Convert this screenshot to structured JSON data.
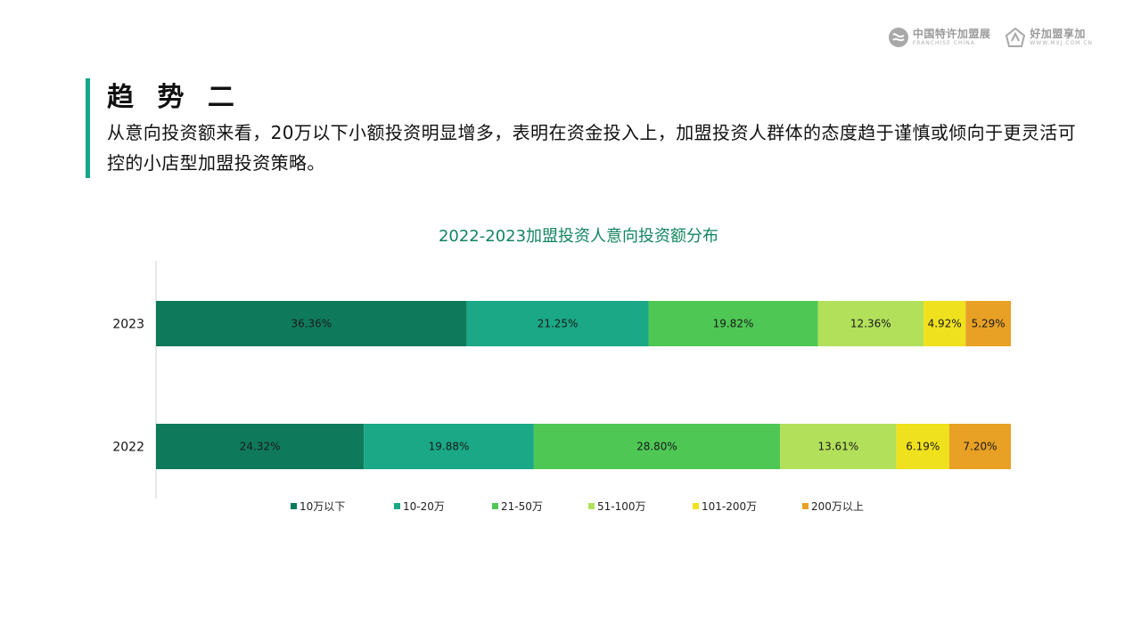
{
  "header": {
    "logo1": {
      "cn": "中国特许加盟展",
      "en": "FRANCHISE CHINA",
      "icon": "franchise-china-logo-icon"
    },
    "logo2": {
      "cn": "好加盟享加",
      "en": "WWW.MXJ.COM.CN",
      "icon": "mxj-logo-icon"
    }
  },
  "slide": {
    "heading": "趋 势 二",
    "intro": "从意向投资额来看，20万以下小额投资明显增多，表明在资金投入上，加盟投资人群体的态度趋于谨慎或倾向于更灵活可控的小店型加盟投资策略。"
  },
  "colors": {
    "accent": "#1aa58a",
    "title": "#12845f",
    "series": [
      "#0f7a5b",
      "#1aa886",
      "#4ec755",
      "#b2e05a",
      "#f0e11e",
      "#e8a125"
    ]
  },
  "chart_data": {
    "type": "bar",
    "orientation": "horizontal",
    "stacked": true,
    "title": "2022-2023加盟投资人意向投资额分布",
    "categories": [
      "2023",
      "2022"
    ],
    "series": [
      {
        "name": "10万以下",
        "values": [
          36.36,
          24.32
        ],
        "labels": [
          "36.36%",
          "24.32%"
        ]
      },
      {
        "name": "10-20万",
        "values": [
          21.25,
          19.88
        ],
        "labels": [
          "21.25%",
          "19.88%"
        ]
      },
      {
        "name": "21-50万",
        "values": [
          19.82,
          28.8
        ],
        "labels": [
          "19.82%",
          "28.80%"
        ]
      },
      {
        "name": "51-100万",
        "values": [
          12.36,
          13.61
        ],
        "labels": [
          "12.36%",
          "13.61%"
        ]
      },
      {
        "name": "101-200万",
        "values": [
          4.92,
          6.19
        ],
        "labels": [
          "4.92%",
          "6.19%"
        ]
      },
      {
        "name": "200万以上",
        "values": [
          5.29,
          7.2
        ],
        "labels": [
          "5.29%",
          "7.20%"
        ]
      }
    ],
    "legend_position": "bottom",
    "grid": false
  }
}
